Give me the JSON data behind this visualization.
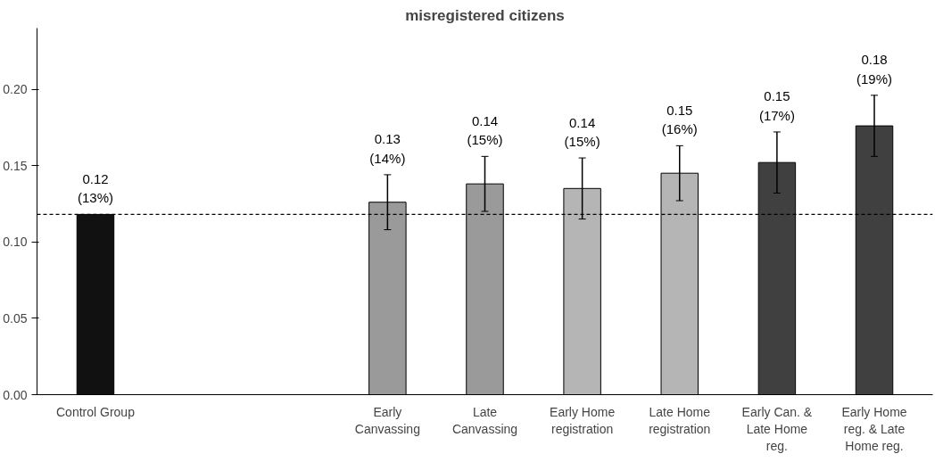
{
  "chart_data": {
    "type": "bar",
    "title": "misregistered citizens",
    "categories": [
      "Control Group",
      null,
      null,
      "Early Canvassing",
      "Late Canvassing",
      "Early Home registration",
      "Late Home registration",
      "Early Can. & Late Home reg.",
      "Early Home reg. & Late Home reg."
    ],
    "values": [
      0.118,
      null,
      null,
      0.126,
      0.138,
      0.135,
      0.145,
      0.152,
      0.176
    ],
    "errors": [
      null,
      null,
      null,
      0.018,
      0.018,
      0.02,
      0.018,
      0.02,
      0.02
    ],
    "value_labels": [
      "0.12\n(13%)",
      null,
      null,
      "0.13\n(14%)",
      "0.14\n(15%)",
      "0.14\n(15%)",
      "0.15\n(16%)",
      "0.15\n(17%)",
      "0.18\n(19%)"
    ],
    "colors": [
      "#111111",
      "#ffffff",
      "#ffffff",
      "#9a9a9a",
      "#9a9a9a",
      "#b5b5b5",
      "#b5b5b5",
      "#404040",
      "#404040"
    ],
    "ylim": [
      0,
      0.24
    ],
    "yticks": [
      {
        "value": 0,
        "label": "0.00"
      },
      {
        "value": 0.05,
        "label": "0.05"
      },
      {
        "value": 0.1,
        "label": "0.10"
      },
      {
        "value": 0.15,
        "label": "0.15"
      },
      {
        "value": 0.2,
        "label": "0.20"
      }
    ],
    "ref_lines": [
      {
        "axis": "y",
        "value": 0.118,
        "label": null,
        "color": "#000000",
        "line_style": "dashed"
      }
    ],
    "grid": false
  }
}
